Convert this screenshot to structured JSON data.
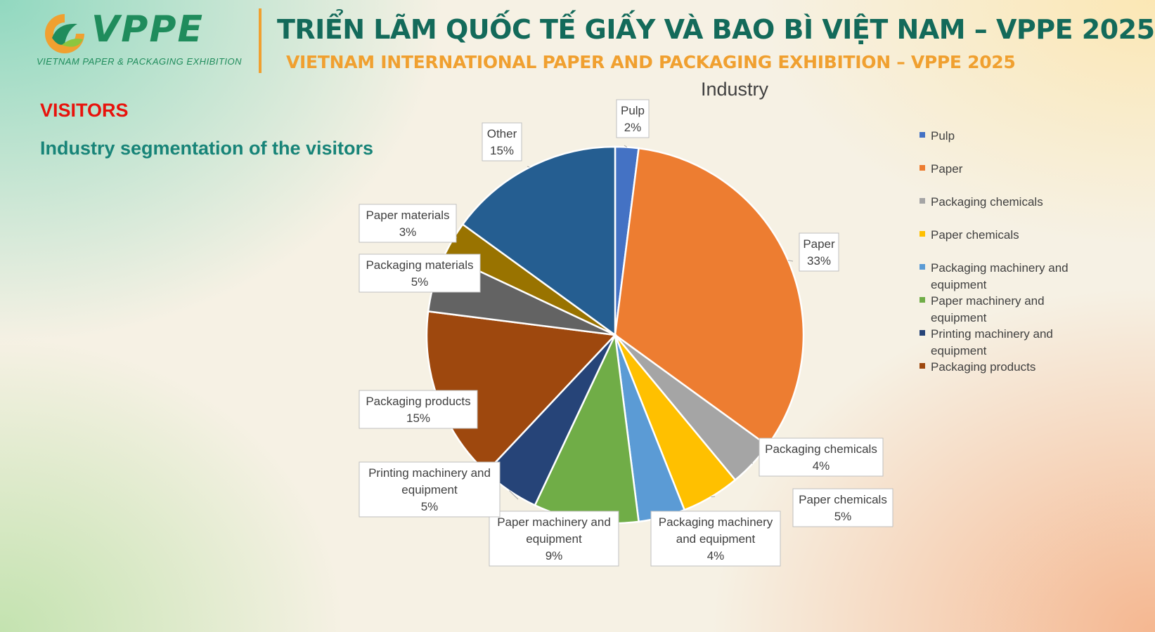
{
  "header": {
    "logo_name": "VPPE",
    "logo_tagline": "VIETNAM PAPER & PACKAGING EXHIBITION",
    "title_vn": "TRIỂN LÃM QUỐC TẾ GIẤY VÀ BAO BÌ VIỆT NAM – VPPE 2025",
    "title_en": "VIETNAM INTERNATIONAL  PAPER AND PACKAGING EXHIBITION – VPPE 2025",
    "accent_green": "#1f8c5c",
    "accent_orange": "#f0a030"
  },
  "section": {
    "title": "VISITORS",
    "subtitle": "Industry segmentation of the visitors"
  },
  "chart_data": {
    "type": "pie",
    "title": "Industry",
    "unit": "%",
    "legend_position": "right",
    "slices": [
      {
        "name": "Pulp",
        "value": 2,
        "color": "#4472c4"
      },
      {
        "name": "Paper",
        "value": 33,
        "color": "#ed7d31"
      },
      {
        "name": "Packaging chemicals",
        "value": 4,
        "color": "#a5a5a5"
      },
      {
        "name": "Paper chemicals",
        "value": 5,
        "color": "#ffc000"
      },
      {
        "name": "Packaging machinery and equipment",
        "value": 4,
        "color": "#5b9bd5"
      },
      {
        "name": "Paper machinery and equipment",
        "value": 9,
        "color": "#70ad47"
      },
      {
        "name": "Printing machinery and equipment",
        "value": 5,
        "color": "#264478"
      },
      {
        "name": "Packaging products",
        "value": 15,
        "color": "#9e480e"
      },
      {
        "name": "Packaging materials",
        "value": 5,
        "color": "#636363"
      },
      {
        "name": "Paper materials",
        "value": 3,
        "color": "#997300"
      },
      {
        "name": "Other",
        "value": 15,
        "color": "#255e91"
      }
    ],
    "legend_visible_count": 8
  }
}
